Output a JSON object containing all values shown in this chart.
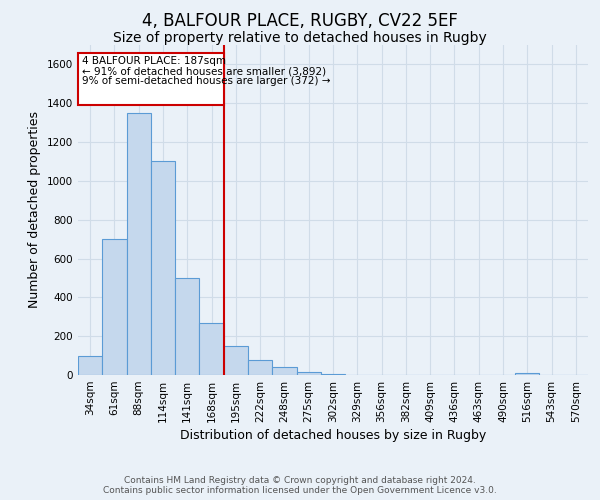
{
  "title": "4, BALFOUR PLACE, RUGBY, CV22 5EF",
  "subtitle": "Size of property relative to detached houses in Rugby",
  "xlabel": "Distribution of detached houses by size in Rugby",
  "ylabel": "Number of detached properties",
  "categories": [
    "34sqm",
    "61sqm",
    "88sqm",
    "114sqm",
    "141sqm",
    "168sqm",
    "195sqm",
    "222sqm",
    "248sqm",
    "275sqm",
    "302sqm",
    "329sqm",
    "356sqm",
    "382sqm",
    "409sqm",
    "436sqm",
    "463sqm",
    "490sqm",
    "516sqm",
    "543sqm",
    "570sqm"
  ],
  "values": [
    100,
    700,
    1350,
    1100,
    500,
    270,
    150,
    75,
    40,
    15,
    5,
    2,
    1,
    1,
    0,
    0,
    2,
    0,
    8,
    0,
    0
  ],
  "bar_color": "#c5d8ed",
  "bar_edge_color": "#5b9bd5",
  "red_line_x": 5.5,
  "annotation_text_line1": "4 BALFOUR PLACE: 187sqm",
  "annotation_text_line2": "← 91% of detached houses are smaller (3,892)",
  "annotation_text_line3": "9% of semi-detached houses are larger (372) →",
  "annotation_box_color": "#cc0000",
  "ylim": [
    0,
    1700
  ],
  "yticks": [
    0,
    200,
    400,
    600,
    800,
    1000,
    1200,
    1400,
    1600
  ],
  "footer_line1": "Contains HM Land Registry data © Crown copyright and database right 2024.",
  "footer_line2": "Contains public sector information licensed under the Open Government Licence v3.0.",
  "background_color": "#eaf1f8",
  "plot_bg_color": "#eaf1f8",
  "grid_color": "#d0dce8",
  "title_fontsize": 12,
  "subtitle_fontsize": 10,
  "axis_label_fontsize": 9,
  "tick_fontsize": 7.5,
  "footer_fontsize": 6.5
}
